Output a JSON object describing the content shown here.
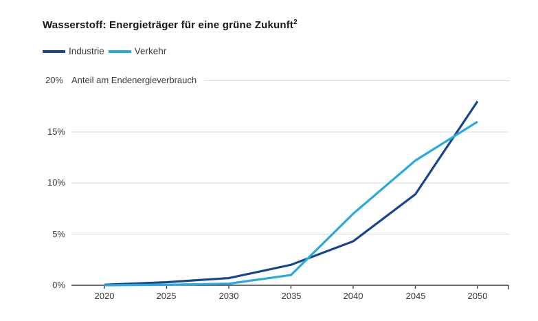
{
  "title": {
    "text": "Wasserstoff: Energieträger für eine grüne Zukunft",
    "footnote_marker": "2"
  },
  "legend": {
    "items": [
      {
        "label": "Industrie",
        "color": "#17468e"
      },
      {
        "label": "Verkehr",
        "color": "#29a9e1"
      }
    ]
  },
  "axis_header": {
    "top_tick_label": "20%",
    "y_axis_title": "Anteil am Endenergieverbrauch"
  },
  "chart_data": {
    "type": "line",
    "title": "Wasserstoff: Energieträger für eine grüne Zukunft²",
    "ylabel": "Anteil am Endenergieverbrauch",
    "x": [
      2020,
      2025,
      2030,
      2035,
      2040,
      2045,
      2050
    ],
    "series": [
      {
        "name": "Industrie",
        "color": "#17468e",
        "values": [
          0.05,
          0.3,
          0.7,
          2.0,
          4.3,
          8.9,
          18.0
        ]
      },
      {
        "name": "Verkehr",
        "color": "#29a9e1",
        "values": [
          0.0,
          0.05,
          0.15,
          1.0,
          7.0,
          12.2,
          16.0
        ]
      }
    ],
    "ylim": [
      0,
      20
    ],
    "yticks": [
      0,
      5,
      10,
      15,
      20
    ],
    "ytick_labels": [
      "0%",
      "5%",
      "10%",
      "15%",
      "20%"
    ],
    "grid": true,
    "legend_position": "top-left",
    "colors": {
      "gridline": "#d8d8d8",
      "axis": "#3f3f3f",
      "text": "#3a3a3a",
      "title_text": "#141414"
    }
  }
}
